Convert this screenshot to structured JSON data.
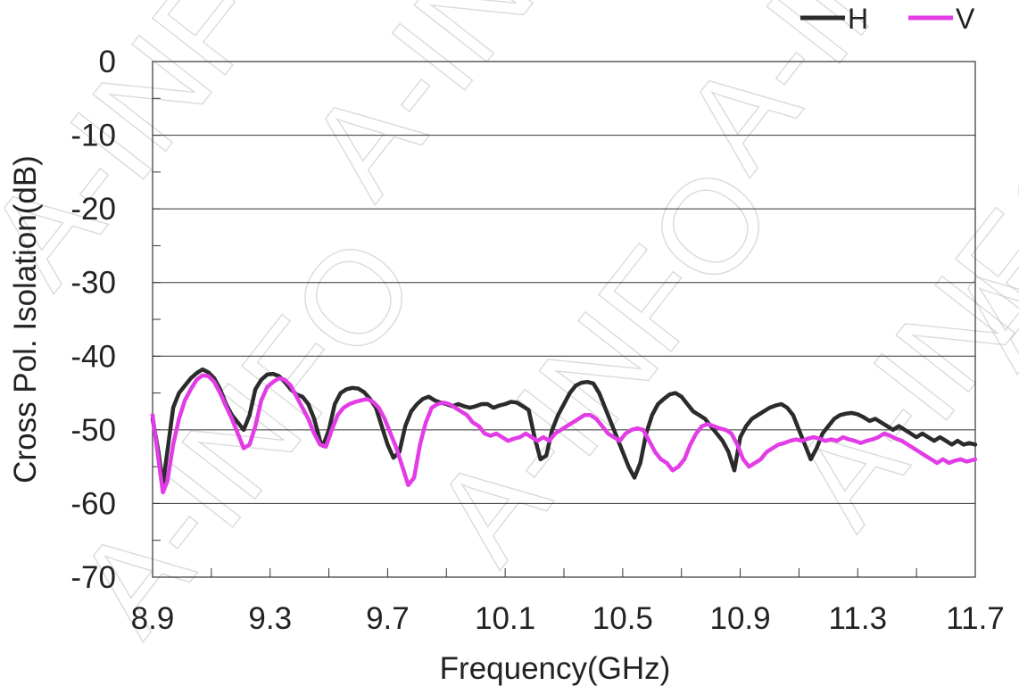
{
  "watermark": "A-INFO",
  "chart_data": {
    "type": "line",
    "xlabel": "Frequency(GHz)",
    "ylabel": "Cross Pol. Isolation(dB)",
    "xlim": [
      8.9,
      11.7
    ],
    "ylim": [
      -70,
      0
    ],
    "x_ticks": [
      "8.9",
      "9.3",
      "9.7",
      "10.1",
      "10.5",
      "10.9",
      "11.3",
      "11.7"
    ],
    "y_ticks": [
      "0",
      "-10",
      "-20",
      "-30",
      "-40",
      "-50",
      "-60",
      "-70"
    ],
    "grid": "horizontal major lines every 10 dB",
    "legend_position": "top-right",
    "series": [
      {
        "name": "H",
        "color": "#2b2b2b",
        "points": [
          [
            8.9,
            -48.5
          ],
          [
            8.92,
            -53
          ],
          [
            8.935,
            -57.5
          ],
          [
            8.95,
            -53
          ],
          [
            8.97,
            -47
          ],
          [
            8.99,
            -45
          ],
          [
            9.01,
            -44
          ],
          [
            9.03,
            -43
          ],
          [
            9.05,
            -42.3
          ],
          [
            9.07,
            -41.8
          ],
          [
            9.09,
            -42.2
          ],
          [
            9.11,
            -43
          ],
          [
            9.13,
            -44.5
          ],
          [
            9.15,
            -46.5
          ],
          [
            9.17,
            -48
          ],
          [
            9.19,
            -49
          ],
          [
            9.21,
            -50
          ],
          [
            9.23,
            -48
          ],
          [
            9.25,
            -44.5
          ],
          [
            9.27,
            -43.2
          ],
          [
            9.29,
            -42.5
          ],
          [
            9.31,
            -42.4
          ],
          [
            9.33,
            -42.7
          ],
          [
            9.35,
            -43.5
          ],
          [
            9.37,
            -44.5
          ],
          [
            9.39,
            -45.2
          ],
          [
            9.41,
            -45.5
          ],
          [
            9.43,
            -46.5
          ],
          [
            9.45,
            -48.5
          ],
          [
            9.47,
            -51.5
          ],
          [
            9.48,
            -52.2
          ],
          [
            9.5,
            -50
          ],
          [
            9.52,
            -46.5
          ],
          [
            9.54,
            -45
          ],
          [
            9.56,
            -44.5
          ],
          [
            9.58,
            -44.3
          ],
          [
            9.6,
            -44.4
          ],
          [
            9.62,
            -44.9
          ],
          [
            9.64,
            -45.8
          ],
          [
            9.66,
            -47
          ],
          [
            9.68,
            -49.5
          ],
          [
            9.7,
            -52
          ],
          [
            9.72,
            -53.8
          ],
          [
            9.74,
            -53
          ],
          [
            9.76,
            -49.5
          ],
          [
            9.78,
            -47.5
          ],
          [
            9.8,
            -46.5
          ],
          [
            9.82,
            -45.8
          ],
          [
            9.84,
            -45.5
          ],
          [
            9.86,
            -46
          ],
          [
            9.88,
            -46.3
          ],
          [
            9.9,
            -46.5
          ],
          [
            9.92,
            -46.8
          ],
          [
            9.94,
            -46.5
          ],
          [
            9.96,
            -46.8
          ],
          [
            9.98,
            -47
          ],
          [
            10.0,
            -46.8
          ],
          [
            10.02,
            -46.5
          ],
          [
            10.04,
            -46.5
          ],
          [
            10.06,
            -47
          ],
          [
            10.08,
            -46.7
          ],
          [
            10.1,
            -46.5
          ],
          [
            10.12,
            -46.2
          ],
          [
            10.14,
            -46.3
          ],
          [
            10.16,
            -46.8
          ],
          [
            10.18,
            -47.3
          ],
          [
            10.2,
            -51
          ],
          [
            10.22,
            -54
          ],
          [
            10.24,
            -53.5
          ],
          [
            10.26,
            -50
          ],
          [
            10.28,
            -48
          ],
          [
            10.3,
            -46.5
          ],
          [
            10.32,
            -45
          ],
          [
            10.34,
            -44
          ],
          [
            10.36,
            -43.6
          ],
          [
            10.38,
            -43.5
          ],
          [
            10.4,
            -43.7
          ],
          [
            10.42,
            -45
          ],
          [
            10.44,
            -47
          ],
          [
            10.46,
            -49
          ],
          [
            10.48,
            -51
          ],
          [
            10.5,
            -53
          ],
          [
            10.52,
            -55
          ],
          [
            10.54,
            -56.5
          ],
          [
            10.56,
            -54.5
          ],
          [
            10.58,
            -50.5
          ],
          [
            10.6,
            -48
          ],
          [
            10.62,
            -46.5
          ],
          [
            10.64,
            -45.8
          ],
          [
            10.66,
            -45.2
          ],
          [
            10.68,
            -45
          ],
          [
            10.7,
            -45.5
          ],
          [
            10.72,
            -46.5
          ],
          [
            10.74,
            -47.5
          ],
          [
            10.76,
            -48
          ],
          [
            10.78,
            -48.5
          ],
          [
            10.8,
            -49.5
          ],
          [
            10.82,
            -50.5
          ],
          [
            10.84,
            -51.5
          ],
          [
            10.86,
            -53
          ],
          [
            10.88,
            -55.5
          ],
          [
            10.9,
            -51
          ],
          [
            10.92,
            -49.5
          ],
          [
            10.94,
            -48.5
          ],
          [
            10.96,
            -48
          ],
          [
            10.98,
            -47.5
          ],
          [
            11.0,
            -47
          ],
          [
            11.02,
            -46.7
          ],
          [
            11.04,
            -46.5
          ],
          [
            11.06,
            -47
          ],
          [
            11.08,
            -48
          ],
          [
            11.1,
            -50
          ],
          [
            11.12,
            -52
          ],
          [
            11.14,
            -54
          ],
          [
            11.16,
            -52.5
          ],
          [
            11.18,
            -50.5
          ],
          [
            11.2,
            -49.5
          ],
          [
            11.22,
            -48.5
          ],
          [
            11.24,
            -48
          ],
          [
            11.26,
            -47.8
          ],
          [
            11.28,
            -47.7
          ],
          [
            11.3,
            -47.9
          ],
          [
            11.32,
            -48.3
          ],
          [
            11.34,
            -48.8
          ],
          [
            11.36,
            -48.5
          ],
          [
            11.38,
            -49
          ],
          [
            11.4,
            -49.5
          ],
          [
            11.42,
            -50
          ],
          [
            11.44,
            -49.5
          ],
          [
            11.46,
            -50
          ],
          [
            11.48,
            -50.5
          ],
          [
            11.5,
            -51
          ],
          [
            11.52,
            -50.5
          ],
          [
            11.54,
            -51
          ],
          [
            11.56,
            -51.5
          ],
          [
            11.58,
            -51
          ],
          [
            11.6,
            -51.5
          ],
          [
            11.62,
            -52
          ],
          [
            11.64,
            -51.5
          ],
          [
            11.66,
            -52
          ],
          [
            11.68,
            -51.8
          ],
          [
            11.7,
            -52
          ]
        ]
      },
      {
        "name": "V",
        "color": "#e23ce6",
        "points": [
          [
            8.9,
            -48
          ],
          [
            8.92,
            -54
          ],
          [
            8.935,
            -58.5
          ],
          [
            8.95,
            -57
          ],
          [
            8.97,
            -52
          ],
          [
            8.99,
            -48.5
          ],
          [
            9.01,
            -46
          ],
          [
            9.03,
            -44.5
          ],
          [
            9.05,
            -43.2
          ],
          [
            9.07,
            -42.6
          ],
          [
            9.09,
            -42.7
          ],
          [
            9.11,
            -43.5
          ],
          [
            9.13,
            -45
          ],
          [
            9.15,
            -46.8
          ],
          [
            9.17,
            -48.5
          ],
          [
            9.19,
            -50.5
          ],
          [
            9.21,
            -52.5
          ],
          [
            9.23,
            -52
          ],
          [
            9.25,
            -49.5
          ],
          [
            9.27,
            -46
          ],
          [
            9.29,
            -44.2
          ],
          [
            9.31,
            -43.5
          ],
          [
            9.33,
            -43
          ],
          [
            9.35,
            -43.2
          ],
          [
            9.37,
            -44
          ],
          [
            9.39,
            -45.5
          ],
          [
            9.41,
            -47
          ],
          [
            9.43,
            -48.5
          ],
          [
            9.45,
            -50.5
          ],
          [
            9.47,
            -52
          ],
          [
            9.49,
            -52.3
          ],
          [
            9.51,
            -50
          ],
          [
            9.53,
            -48
          ],
          [
            9.55,
            -47
          ],
          [
            9.57,
            -46.5
          ],
          [
            9.59,
            -46.2
          ],
          [
            9.61,
            -46
          ],
          [
            9.63,
            -45.8
          ],
          [
            9.65,
            -46.2
          ],
          [
            9.67,
            -47
          ],
          [
            9.69,
            -48.5
          ],
          [
            9.71,
            -50.5
          ],
          [
            9.73,
            -52.5
          ],
          [
            9.75,
            -55
          ],
          [
            9.77,
            -57.5
          ],
          [
            9.79,
            -56.5
          ],
          [
            9.81,
            -52
          ],
          [
            9.83,
            -49
          ],
          [
            9.85,
            -47
          ],
          [
            9.87,
            -46.5
          ],
          [
            9.89,
            -46.3
          ],
          [
            9.91,
            -46.5
          ],
          [
            9.93,
            -47
          ],
          [
            9.95,
            -47.5
          ],
          [
            9.97,
            -48
          ],
          [
            9.99,
            -49
          ],
          [
            10.01,
            -49.5
          ],
          [
            10.03,
            -50.5
          ],
          [
            10.05,
            -50.8
          ],
          [
            10.07,
            -50.5
          ],
          [
            10.09,
            -51
          ],
          [
            10.11,
            -51.5
          ],
          [
            10.13,
            -51.2
          ],
          [
            10.15,
            -51
          ],
          [
            10.17,
            -50.5
          ],
          [
            10.19,
            -51
          ],
          [
            10.21,
            -51.5
          ],
          [
            10.23,
            -51
          ],
          [
            10.25,
            -51.5
          ],
          [
            10.27,
            -50.5
          ],
          [
            10.29,
            -50
          ],
          [
            10.31,
            -49.5
          ],
          [
            10.33,
            -49
          ],
          [
            10.35,
            -48.5
          ],
          [
            10.37,
            -48
          ],
          [
            10.39,
            -48
          ],
          [
            10.41,
            -48.5
          ],
          [
            10.43,
            -49.5
          ],
          [
            10.45,
            -50.5
          ],
          [
            10.47,
            -51
          ],
          [
            10.49,
            -51.5
          ],
          [
            10.51,
            -50.5
          ],
          [
            10.53,
            -50
          ],
          [
            10.55,
            -49.8
          ],
          [
            10.57,
            -50
          ],
          [
            10.59,
            -51.5
          ],
          [
            10.61,
            -53
          ],
          [
            10.63,
            -54
          ],
          [
            10.65,
            -54.5
          ],
          [
            10.67,
            -55.5
          ],
          [
            10.69,
            -55
          ],
          [
            10.71,
            -54
          ],
          [
            10.73,
            -52
          ],
          [
            10.75,
            -50.5
          ],
          [
            10.77,
            -49.5
          ],
          [
            10.79,
            -49.2
          ],
          [
            10.81,
            -49.5
          ],
          [
            10.83,
            -49.8
          ],
          [
            10.85,
            -50
          ],
          [
            10.87,
            -50.5
          ],
          [
            10.89,
            -52
          ],
          [
            10.91,
            -54
          ],
          [
            10.93,
            -55
          ],
          [
            10.95,
            -54.5
          ],
          [
            10.97,
            -54
          ],
          [
            10.99,
            -53
          ],
          [
            11.01,
            -52.5
          ],
          [
            11.03,
            -52
          ],
          [
            11.05,
            -51.8
          ],
          [
            11.07,
            -51.5
          ],
          [
            11.09,
            -51.3
          ],
          [
            11.11,
            -51.5
          ],
          [
            11.13,
            -51.2
          ],
          [
            11.15,
            -51
          ],
          [
            11.17,
            -51.2
          ],
          [
            11.19,
            -51.5
          ],
          [
            11.21,
            -51.3
          ],
          [
            11.23,
            -51.5
          ],
          [
            11.25,
            -51
          ],
          [
            11.27,
            -51.3
          ],
          [
            11.29,
            -51.5
          ],
          [
            11.31,
            -51.8
          ],
          [
            11.33,
            -51.5
          ],
          [
            11.35,
            -51.3
          ],
          [
            11.37,
            -51
          ],
          [
            11.39,
            -50.5
          ],
          [
            11.41,
            -50.8
          ],
          [
            11.43,
            -51.2
          ],
          [
            11.45,
            -51.5
          ],
          [
            11.47,
            -52
          ],
          [
            11.49,
            -52.5
          ],
          [
            11.51,
            -53
          ],
          [
            11.53,
            -53.5
          ],
          [
            11.55,
            -54
          ],
          [
            11.57,
            -54.5
          ],
          [
            11.59,
            -54
          ],
          [
            11.61,
            -54.5
          ],
          [
            11.63,
            -54.2
          ],
          [
            11.65,
            -54
          ],
          [
            11.67,
            -54.3
          ],
          [
            11.7,
            -54
          ]
        ]
      }
    ]
  }
}
